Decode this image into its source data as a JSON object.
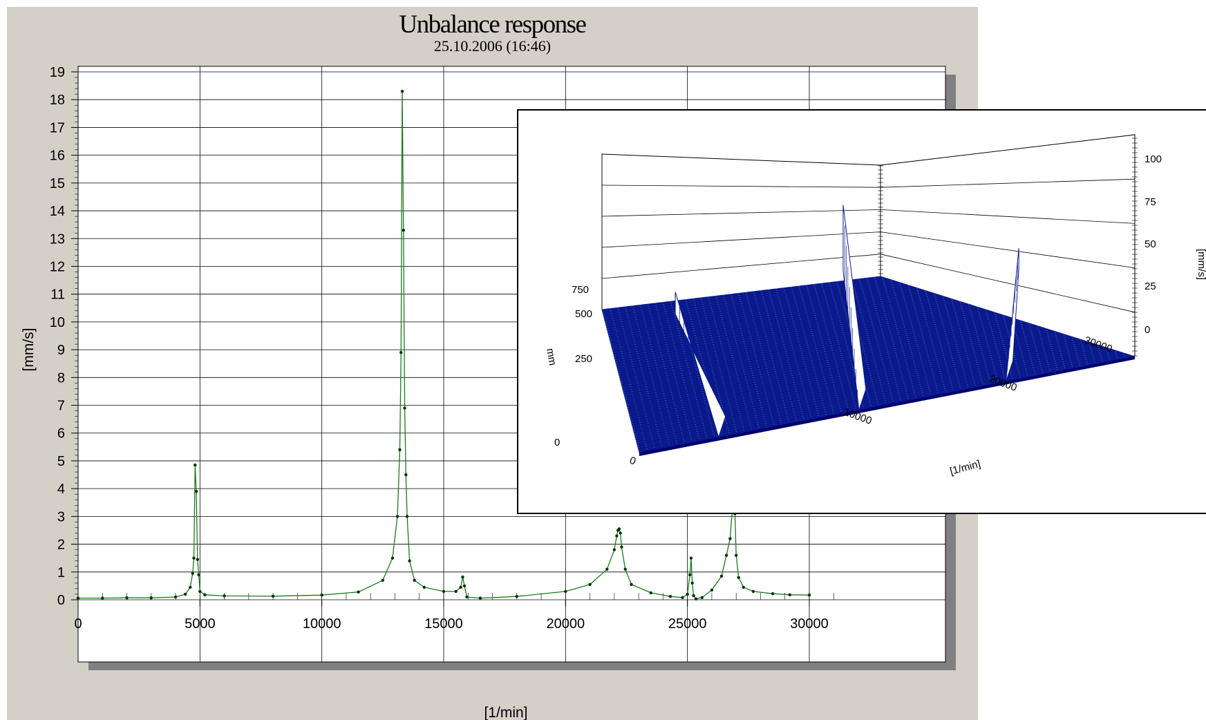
{
  "chart_data": [
    {
      "type": "line",
      "title": "Unbalance response",
      "subtitle": "25.10.2006 (16:46)",
      "xlabel": "[1/min]",
      "ylabel": "[mm/s]",
      "xlim": [
        0,
        30000
      ],
      "ylim": [
        0,
        19
      ],
      "xticks": [
        0,
        5000,
        10000,
        15000,
        20000,
        25000,
        30000
      ],
      "yticks": [
        0,
        1,
        2,
        3,
        4,
        5,
        6,
        7,
        8,
        9,
        10,
        11,
        12,
        13,
        14,
        15,
        16,
        17,
        18,
        19
      ],
      "grid": true,
      "series": [
        {
          "color": "#1a7a1a",
          "marker_color": "#003300",
          "x": [
            0,
            1000,
            2000,
            3000,
            4000,
            4400,
            4600,
            4700,
            4750,
            4800,
            4850,
            4900,
            4950,
            5000,
            5200,
            6000,
            8000,
            10000,
            11500,
            12500,
            12900,
            13100,
            13200,
            13250,
            13300,
            13350,
            13400,
            13450,
            13500,
            13600,
            13800,
            14200,
            15000,
            15500,
            15700,
            15780,
            15850,
            15950,
            16500,
            18000,
            20000,
            21000,
            21700,
            22000,
            22100,
            22150,
            22200,
            22250,
            22300,
            22450,
            22700,
            23500,
            24300,
            24800,
            25000,
            25100,
            25150,
            25200,
            25250,
            25350,
            25600,
            26000,
            26400,
            26600,
            26750,
            26850,
            26900,
            26950,
            27000,
            27100,
            27300,
            27700,
            28500,
            29200,
            30000
          ],
          "y": [
            0.06,
            0.06,
            0.07,
            0.07,
            0.1,
            0.2,
            0.45,
            0.95,
            1.5,
            4.85,
            3.9,
            1.45,
            0.9,
            0.3,
            0.18,
            0.14,
            0.13,
            0.17,
            0.28,
            0.7,
            1.5,
            3.0,
            5.4,
            8.9,
            18.3,
            13.3,
            6.9,
            4.5,
            3.0,
            1.4,
            0.7,
            0.45,
            0.3,
            0.3,
            0.45,
            0.82,
            0.5,
            0.1,
            0.06,
            0.12,
            0.3,
            0.55,
            1.1,
            1.8,
            2.3,
            2.5,
            2.55,
            2.4,
            1.9,
            1.1,
            0.55,
            0.25,
            0.12,
            0.08,
            0.2,
            0.9,
            1.5,
            0.6,
            0.15,
            0.03,
            0.08,
            0.35,
            0.85,
            1.6,
            2.2,
            3.35,
            3.95,
            3.1,
            1.6,
            0.8,
            0.45,
            0.3,
            0.22,
            0.18,
            0.17
          ]
        }
      ]
    },
    {
      "type": "waterfall-3d",
      "xlabel": "[1/min]",
      "ylabel": "mm",
      "zlabel": "[mm/s]",
      "xticks": [
        0,
        10000,
        20000,
        30000
      ],
      "yticks": [
        0,
        250,
        500,
        750
      ],
      "zticks": [
        0,
        25,
        50,
        75,
        100
      ],
      "peaks": [
        {
          "x": 4800,
          "z": 18
        },
        {
          "x": 13300,
          "z": 100
        },
        {
          "x": 22200,
          "z": 20
        }
      ]
    }
  ]
}
